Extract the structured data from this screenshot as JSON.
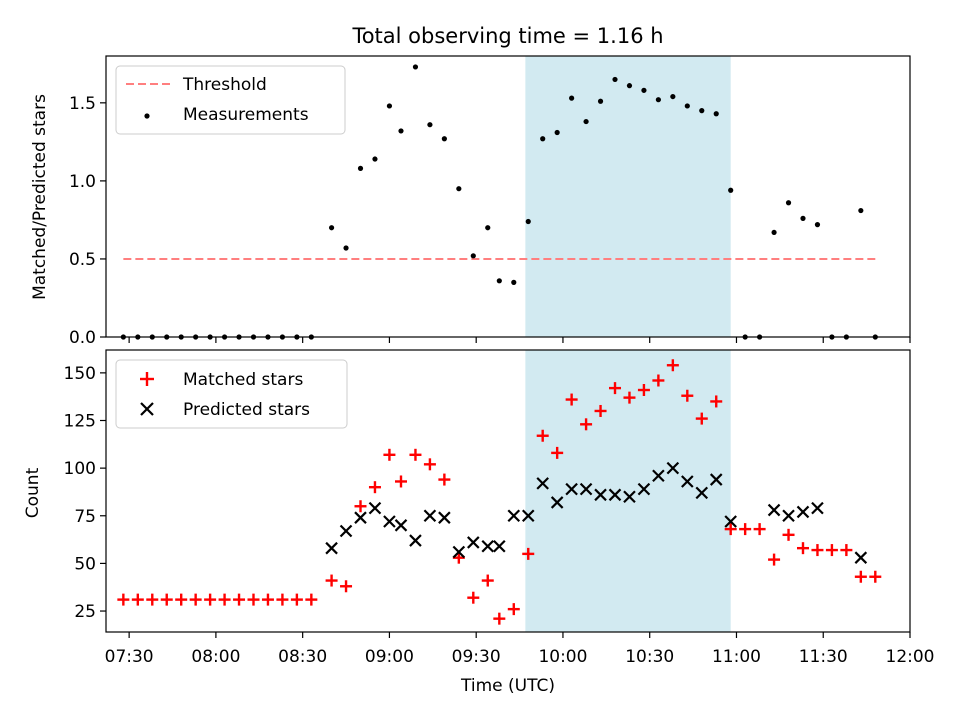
{
  "figure": {
    "title": "Total observing time = 1.16 h",
    "xlabel": "Time (UTC)"
  },
  "colors": {
    "threshold": "#ff7f7f",
    "measurements": "#000000",
    "matched": "#ff0000",
    "predicted": "#000000",
    "span": "#add8e6"
  },
  "chart_data": [
    {
      "type": "scatter",
      "panel": "top",
      "ylabel": "Matched/Predicted stars",
      "xlim": [
        "07:22",
        "12:00"
      ],
      "ylim": [
        0,
        1.8
      ],
      "x_ticks": [
        "07:30",
        "08:00",
        "08:30",
        "09:00",
        "09:30",
        "10:00",
        "10:30",
        "11:00",
        "11:30",
        "12:00"
      ],
      "y_ticks": [
        "0.0",
        "0.5",
        "1.0",
        "1.5"
      ],
      "legend": {
        "placement": "upper-left",
        "entries": [
          "Threshold",
          "Measurements"
        ]
      },
      "highlight_span": {
        "start": "09:47",
        "end": "10:58"
      },
      "threshold": {
        "name": "Threshold",
        "y": 0.5,
        "x_start": "07:28",
        "x_end": "11:48"
      },
      "series": [
        {
          "name": "Measurements",
          "points": [
            [
              "07:28",
              0
            ],
            [
              "07:33",
              0
            ],
            [
              "07:38",
              0
            ],
            [
              "07:43",
              0
            ],
            [
              "07:48",
              0
            ],
            [
              "07:53",
              0
            ],
            [
              "07:58",
              0
            ],
            [
              "08:03",
              0
            ],
            [
              "08:08",
              0
            ],
            [
              "08:13",
              0
            ],
            [
              "08:18",
              0
            ],
            [
              "08:23",
              0
            ],
            [
              "08:28",
              0
            ],
            [
              "08:33",
              0
            ],
            [
              "08:40",
              0.7
            ],
            [
              "08:45",
              0.57
            ],
            [
              "08:50",
              1.08
            ],
            [
              "08:55",
              1.14
            ],
            [
              "09:00",
              1.48
            ],
            [
              "09:04",
              1.32
            ],
            [
              "09:09",
              1.73
            ],
            [
              "09:14",
              1.36
            ],
            [
              "09:19",
              1.27
            ],
            [
              "09:24",
              0.95
            ],
            [
              "09:29",
              0.52
            ],
            [
              "09:34",
              0.7
            ],
            [
              "09:38",
              0.36
            ],
            [
              "09:43",
              0.35
            ],
            [
              "09:48",
              0.74
            ],
            [
              "09:53",
              1.27
            ],
            [
              "09:58",
              1.31
            ],
            [
              "10:03",
              1.53
            ],
            [
              "10:08",
              1.38
            ],
            [
              "10:13",
              1.51
            ],
            [
              "10:18",
              1.65
            ],
            [
              "10:23",
              1.61
            ],
            [
              "10:28",
              1.58
            ],
            [
              "10:33",
              1.52
            ],
            [
              "10:38",
              1.54
            ],
            [
              "10:43",
              1.48
            ],
            [
              "10:48",
              1.45
            ],
            [
              "10:53",
              1.43
            ],
            [
              "10:58",
              0.94
            ],
            [
              "11:03",
              0
            ],
            [
              "11:08",
              0
            ],
            [
              "11:13",
              0.67
            ],
            [
              "11:18",
              0.86
            ],
            [
              "11:23",
              0.76
            ],
            [
              "11:28",
              0.72
            ],
            [
              "11:33",
              0
            ],
            [
              "11:38",
              0
            ],
            [
              "11:43",
              0.81
            ],
            [
              "11:48",
              0
            ]
          ]
        }
      ]
    },
    {
      "type": "scatter",
      "panel": "bottom",
      "ylabel": "Count",
      "xlim": [
        "07:22",
        "12:00"
      ],
      "ylim": [
        14,
        162
      ],
      "x_ticks": [
        "07:30",
        "08:00",
        "08:30",
        "09:00",
        "09:30",
        "10:00",
        "10:30",
        "11:00",
        "11:30",
        "12:00"
      ],
      "y_ticks": [
        "25",
        "50",
        "75",
        "100",
        "125",
        "150"
      ],
      "legend": {
        "placement": "upper-left",
        "entries": [
          "Matched stars",
          "Predicted stars"
        ]
      },
      "highlight_span": {
        "start": "09:47",
        "end": "10:58"
      },
      "series": [
        {
          "name": "Matched stars",
          "marker": "plus",
          "points": [
            [
              "07:28",
              31
            ],
            [
              "07:33",
              31
            ],
            [
              "07:38",
              31
            ],
            [
              "07:43",
              31
            ],
            [
              "07:48",
              31
            ],
            [
              "07:53",
              31
            ],
            [
              "07:58",
              31
            ],
            [
              "08:03",
              31
            ],
            [
              "08:08",
              31
            ],
            [
              "08:13",
              31
            ],
            [
              "08:18",
              31
            ],
            [
              "08:23",
              31
            ],
            [
              "08:28",
              31
            ],
            [
              "08:33",
              31
            ],
            [
              "08:40",
              41
            ],
            [
              "08:45",
              38
            ],
            [
              "08:50",
              80
            ],
            [
              "08:55",
              90
            ],
            [
              "09:00",
              107
            ],
            [
              "09:04",
              93
            ],
            [
              "09:09",
              107
            ],
            [
              "09:14",
              102
            ],
            [
              "09:19",
              94
            ],
            [
              "09:24",
              53
            ],
            [
              "09:29",
              32
            ],
            [
              "09:34",
              41
            ],
            [
              "09:38",
              21
            ],
            [
              "09:43",
              26
            ],
            [
              "09:48",
              55
            ],
            [
              "09:53",
              117
            ],
            [
              "09:58",
              108
            ],
            [
              "10:03",
              136
            ],
            [
              "10:08",
              123
            ],
            [
              "10:13",
              130
            ],
            [
              "10:18",
              142
            ],
            [
              "10:23",
              137
            ],
            [
              "10:28",
              141
            ],
            [
              "10:33",
              146
            ],
            [
              "10:38",
              154
            ],
            [
              "10:43",
              138
            ],
            [
              "10:48",
              126
            ],
            [
              "10:53",
              135
            ],
            [
              "10:58",
              68
            ],
            [
              "11:03",
              68
            ],
            [
              "11:08",
              68
            ],
            [
              "11:13",
              52
            ],
            [
              "11:18",
              65
            ],
            [
              "11:23",
              58
            ],
            [
              "11:28",
              57
            ],
            [
              "11:33",
              57
            ],
            [
              "11:38",
              57
            ],
            [
              "11:43",
              43
            ],
            [
              "11:48",
              43
            ]
          ]
        },
        {
          "name": "Predicted stars",
          "marker": "x",
          "points": [
            [
              "08:40",
              58
            ],
            [
              "08:45",
              67
            ],
            [
              "08:50",
              74
            ],
            [
              "08:55",
              79
            ],
            [
              "09:00",
              72
            ],
            [
              "09:04",
              70
            ],
            [
              "09:09",
              62
            ],
            [
              "09:14",
              75
            ],
            [
              "09:19",
              74
            ],
            [
              "09:24",
              56
            ],
            [
              "09:29",
              61
            ],
            [
              "09:34",
              59
            ],
            [
              "09:38",
              59
            ],
            [
              "09:43",
              75
            ],
            [
              "09:48",
              75
            ],
            [
              "09:53",
              92
            ],
            [
              "09:58",
              82
            ],
            [
              "10:03",
              89
            ],
            [
              "10:08",
              89
            ],
            [
              "10:13",
              86
            ],
            [
              "10:18",
              86
            ],
            [
              "10:23",
              85
            ],
            [
              "10:28",
              89
            ],
            [
              "10:33",
              96
            ],
            [
              "10:38",
              100
            ],
            [
              "10:43",
              93
            ],
            [
              "10:48",
              87
            ],
            [
              "10:53",
              94
            ],
            [
              "10:58",
              72
            ],
            [
              "11:13",
              78
            ],
            [
              "11:18",
              75
            ],
            [
              "11:23",
              77
            ],
            [
              "11:28",
              79
            ],
            [
              "11:43",
              53
            ]
          ]
        }
      ]
    }
  ]
}
